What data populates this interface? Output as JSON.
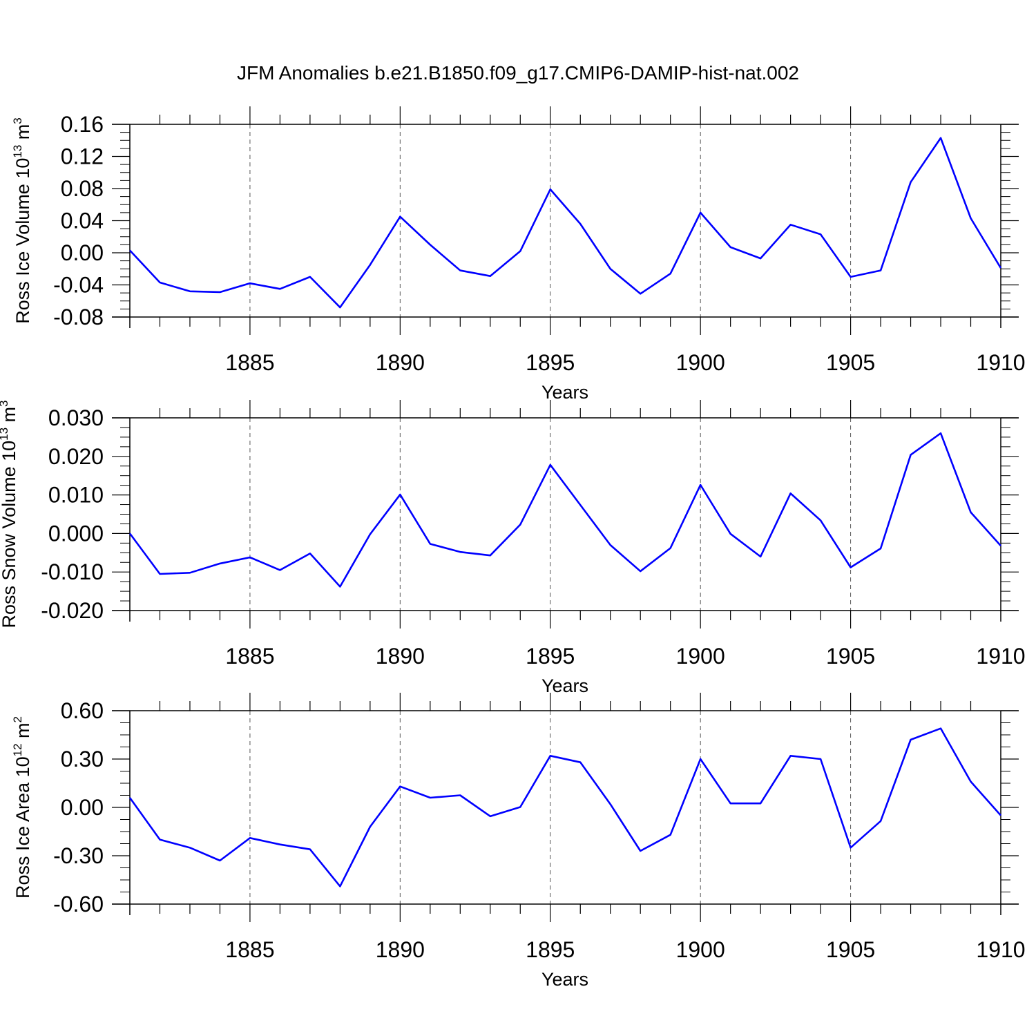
{
  "title": "JFM Anomalies b.e21.B1850.f09_g17.CMIP6-DAMIP-hist-nat.002",
  "chart_data": [
    {
      "type": "line",
      "ylabel": {
        "base": "Ross Ice Volume 10",
        "exp": "13",
        "unit": " m",
        "unit_exp": "3"
      },
      "xlabel": "Years",
      "xlim": [
        1881,
        1910
      ],
      "ylim": [
        -0.08,
        0.16
      ],
      "yticks": [
        -0.08,
        -0.04,
        0.0,
        0.04,
        0.08,
        0.12,
        0.16
      ],
      "ytick_labels": [
        "-0.08",
        "-0.04",
        "0.00",
        "0.04",
        "0.08",
        "0.12",
        "0.16"
      ],
      "xticks": [
        1885,
        1890,
        1895,
        1900,
        1905,
        1910
      ],
      "xtick_labels": [
        "1885",
        "1890",
        "1895",
        "1900",
        "1905",
        "1910"
      ],
      "x": [
        1881,
        1882,
        1883,
        1884,
        1885,
        1886,
        1887,
        1888,
        1889,
        1890,
        1891,
        1892,
        1893,
        1894,
        1895,
        1896,
        1897,
        1898,
        1899,
        1900,
        1901,
        1902,
        1903,
        1904,
        1905,
        1906,
        1907,
        1908,
        1909,
        1910
      ],
      "series": [
        {
          "color": "#0000ff",
          "values": [
            0.003,
            -0.037,
            -0.048,
            -0.049,
            -0.038,
            -0.045,
            -0.03,
            -0.068,
            -0.015,
            0.045,
            0.01,
            -0.022,
            -0.029,
            0.002,
            0.079,
            0.036,
            -0.02,
            -0.051,
            -0.026,
            0.05,
            0.007,
            -0.007,
            0.035,
            0.023,
            -0.03,
            -0.022,
            0.088,
            0.143,
            0.043,
            -0.019
          ]
        }
      ],
      "grid": "dashed vertical at major x ticks"
    },
    {
      "type": "line",
      "ylabel": {
        "base": "Ross Snow Volume 10",
        "exp": "13",
        "unit": " m",
        "unit_exp": "3"
      },
      "xlabel": "Years",
      "xlim": [
        1881,
        1910
      ],
      "ylim": [
        -0.02,
        0.03
      ],
      "yticks": [
        -0.02,
        -0.01,
        0.0,
        0.01,
        0.02,
        0.03
      ],
      "ytick_labels": [
        "-0.020",
        "-0.010",
        "0.000",
        "0.010",
        "0.020",
        "0.030"
      ],
      "xticks": [
        1885,
        1890,
        1895,
        1900,
        1905,
        1910
      ],
      "xtick_labels": [
        "1885",
        "1890",
        "1895",
        "1900",
        "1905",
        "1910"
      ],
      "x": [
        1881,
        1882,
        1883,
        1884,
        1885,
        1886,
        1887,
        1888,
        1889,
        1890,
        1891,
        1892,
        1893,
        1894,
        1895,
        1896,
        1897,
        1898,
        1899,
        1900,
        1901,
        1902,
        1903,
        1904,
        1905,
        1906,
        1907,
        1908,
        1909,
        1910
      ],
      "series": [
        {
          "color": "#0000ff",
          "values": [
            0.0,
            -0.0105,
            -0.0102,
            -0.0078,
            -0.0062,
            -0.0095,
            -0.0052,
            -0.0138,
            -0.0002,
            0.0101,
            -0.0027,
            -0.0048,
            -0.0057,
            0.0023,
            0.0178,
            0.0074,
            -0.003,
            -0.0098,
            -0.0038,
            0.0126,
            -0.0001,
            -0.006,
            0.0104,
            0.0034,
            -0.0088,
            -0.0039,
            0.0204,
            0.026,
            0.0055,
            -0.0032
          ]
        }
      ],
      "grid": "dashed vertical at major x ticks"
    },
    {
      "type": "line",
      "ylabel": {
        "base": "Ross Ice Area 10",
        "exp": "12",
        "unit": " m",
        "unit_exp": "2"
      },
      "xlabel": "Years",
      "xlim": [
        1881,
        1910
      ],
      "ylim": [
        -0.6,
        0.6
      ],
      "yticks": [
        -0.6,
        -0.3,
        0.0,
        0.3,
        0.6
      ],
      "ytick_labels": [
        "-0.60",
        "-0.30",
        "0.00",
        "0.30",
        "0.60"
      ],
      "xticks": [
        1885,
        1890,
        1895,
        1900,
        1905,
        1910
      ],
      "xtick_labels": [
        "1885",
        "1890",
        "1895",
        "1900",
        "1905",
        "1910"
      ],
      "x": [
        1881,
        1882,
        1883,
        1884,
        1885,
        1886,
        1887,
        1888,
        1889,
        1890,
        1891,
        1892,
        1893,
        1894,
        1895,
        1896,
        1897,
        1898,
        1899,
        1900,
        1901,
        1902,
        1903,
        1904,
        1905,
        1906,
        1907,
        1908,
        1909,
        1910
      ],
      "series": [
        {
          "color": "#0000ff",
          "values": [
            0.06,
            -0.2,
            -0.25,
            -0.33,
            -0.19,
            -0.23,
            -0.26,
            -0.49,
            -0.12,
            0.13,
            0.06,
            0.075,
            -0.055,
            0.002,
            0.32,
            0.28,
            0.02,
            -0.27,
            -0.17,
            0.3,
            0.025,
            0.025,
            0.32,
            0.3,
            -0.25,
            -0.085,
            0.42,
            0.49,
            0.16,
            -0.05
          ]
        }
      ],
      "grid": "dashed vertical at major x ticks"
    }
  ]
}
